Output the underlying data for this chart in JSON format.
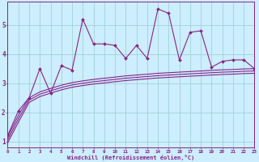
{
  "xlabel": "Windchill (Refroidissement éolien,°C)",
  "x_values": [
    0,
    1,
    2,
    3,
    4,
    5,
    6,
    7,
    8,
    9,
    10,
    11,
    12,
    13,
    14,
    15,
    16,
    17,
    18,
    19,
    20,
    21,
    22,
    23
  ],
  "jagged_line": [
    1.2,
    2.05,
    2.5,
    3.5,
    2.65,
    3.6,
    3.45,
    5.2,
    4.35,
    4.35,
    4.3,
    3.85,
    4.3,
    3.85,
    5.55,
    5.4,
    3.8,
    4.75,
    4.8,
    3.55,
    3.75,
    3.8,
    3.8,
    3.5
  ],
  "smooth_line1": [
    1.15,
    1.9,
    2.5,
    2.7,
    2.82,
    2.93,
    3.02,
    3.08,
    3.13,
    3.17,
    3.21,
    3.25,
    3.28,
    3.31,
    3.34,
    3.36,
    3.38,
    3.4,
    3.42,
    3.44,
    3.46,
    3.47,
    3.49,
    3.5
  ],
  "smooth_line2": [
    1.05,
    1.78,
    2.42,
    2.62,
    2.74,
    2.85,
    2.94,
    3.0,
    3.05,
    3.09,
    3.13,
    3.17,
    3.2,
    3.23,
    3.26,
    3.28,
    3.3,
    3.32,
    3.34,
    3.36,
    3.38,
    3.39,
    3.41,
    3.42
  ],
  "smooth_line3": [
    0.95,
    1.66,
    2.34,
    2.54,
    2.66,
    2.77,
    2.86,
    2.92,
    2.97,
    3.01,
    3.05,
    3.09,
    3.12,
    3.15,
    3.18,
    3.2,
    3.22,
    3.24,
    3.26,
    3.28,
    3.3,
    3.31,
    3.33,
    3.34
  ],
  "line_color": "#882288",
  "bg_color": "#cceeff",
  "grid_color": "#99cccc",
  "ylim": [
    0.8,
    5.8
  ],
  "xlim": [
    0,
    23
  ]
}
